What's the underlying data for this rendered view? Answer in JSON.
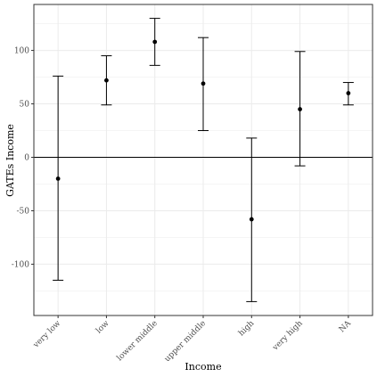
{
  "chart_data": {
    "type": "scatter",
    "title": "",
    "xlabel": "Income",
    "ylabel": "GATEs Income",
    "categories": [
      "very low",
      "low",
      "lower middle",
      "upper middle",
      "high",
      "very high",
      "NA"
    ],
    "estimates": [
      -20,
      72,
      108,
      69,
      -58,
      45,
      60
    ],
    "lower": [
      -115,
      49,
      86,
      25,
      -135,
      -8,
      49
    ],
    "upper": [
      76,
      95,
      130,
      112,
      18,
      99,
      70
    ],
    "ylim": [
      -148,
      143
    ],
    "yticks": [
      -100,
      -50,
      0,
      50,
      100
    ],
    "reference_line_y": 0,
    "grid": true,
    "legend": "none",
    "colors": {
      "mark": "#000000",
      "grid": "#ebebeb",
      "panel_border": "#333333"
    }
  }
}
